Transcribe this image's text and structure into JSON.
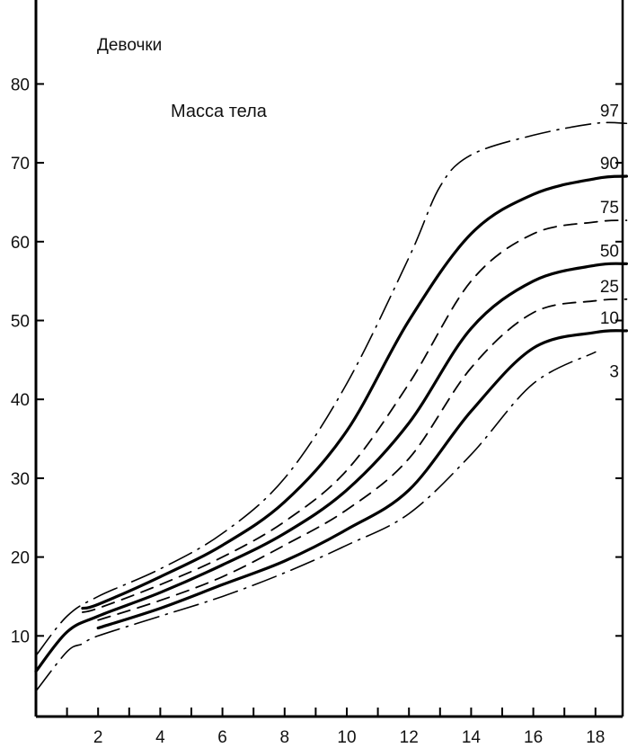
{
  "chart_data": {
    "type": "line",
    "title": "Девочки",
    "subtitle": "Масса тела",
    "xlabel": "",
    "ylabel": "",
    "xlim": [
      0,
      19
    ],
    "ylim": [
      0,
      85
    ],
    "x_ticks": [
      2,
      4,
      6,
      8,
      10,
      12,
      14,
      16,
      18
    ],
    "y_ticks": [
      10,
      20,
      30,
      40,
      50,
      60,
      70,
      80
    ],
    "grid": false,
    "series": [
      {
        "name": "97",
        "style": "dashdot",
        "x": [
          0,
          1,
          2,
          4,
          6,
          8,
          10,
          12,
          13,
          14,
          16,
          18,
          19
        ],
        "values": [
          7.5,
          12.5,
          15,
          18.5,
          23,
          30,
          42,
          58,
          67,
          71,
          73.5,
          75,
          75
        ]
      },
      {
        "name": "90",
        "style": "solid",
        "x": [
          1.5,
          2,
          4,
          6,
          8,
          10,
          12,
          14,
          16,
          18,
          19
        ],
        "values": [
          13.5,
          14,
          17.5,
          21.5,
          27,
          36,
          50,
          61,
          66,
          68,
          68.3
        ]
      },
      {
        "name": "75",
        "style": "dashed",
        "x": [
          1.5,
          2,
          4,
          6,
          8,
          10,
          12,
          14,
          16,
          18,
          19
        ],
        "values": [
          13,
          13.5,
          16.5,
          20,
          24.5,
          31,
          42,
          55,
          61,
          62.5,
          62.7
        ]
      },
      {
        "name": "50",
        "style": "solid",
        "x": [
          0,
          1,
          2,
          4,
          6,
          8,
          10,
          12,
          14,
          16,
          18,
          19
        ],
        "values": [
          5.5,
          10.5,
          12.5,
          15.5,
          19,
          23,
          28.5,
          37,
          49,
          55,
          57,
          57.2
        ]
      },
      {
        "name": "25",
        "style": "dashed",
        "x": [
          2,
          4,
          6,
          8,
          10,
          12,
          14,
          16,
          18,
          19
        ],
        "values": [
          12,
          14.5,
          17.5,
          21.5,
          26,
          32.5,
          44,
          51,
          52.5,
          52.7
        ]
      },
      {
        "name": "10",
        "style": "solid",
        "x": [
          2,
          4,
          6,
          8,
          10,
          12,
          14,
          16,
          18,
          19
        ],
        "values": [
          11,
          13.5,
          16.5,
          19.5,
          23.5,
          28.5,
          38.5,
          46.5,
          48.5,
          48.7
        ]
      },
      {
        "name": "3",
        "style": "dashdot",
        "x": [
          0,
          1,
          1.5,
          2,
          4,
          6,
          8,
          10,
          12,
          14,
          16,
          18
        ],
        "values": [
          3,
          8,
          9,
          10,
          12.5,
          15,
          18,
          21.5,
          25.5,
          33,
          42,
          46
        ]
      }
    ]
  }
}
